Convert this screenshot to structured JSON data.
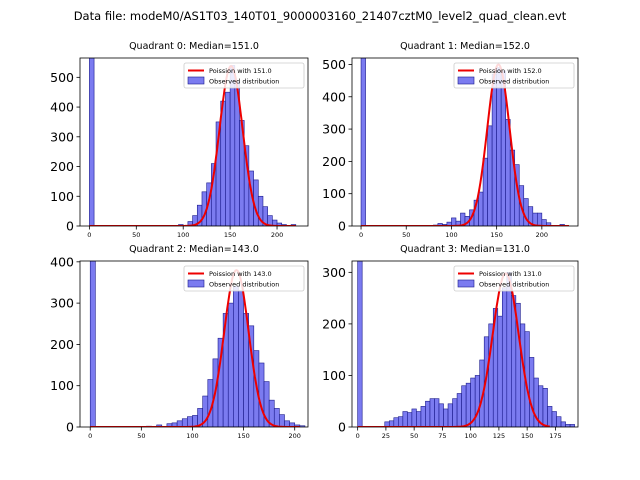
{
  "figure_title": "Data file: modeM0/AS1T03_140T01_9000003160_21407cztM0_level2_quad_clean.evt",
  "colors": {
    "bar_fill": "#7b7bf0",
    "bar_edge": "#1a1a8c",
    "curve": "#ee0000"
  },
  "chart_data": [
    {
      "type": "bar",
      "title": "Quadrant 0: Median=151.0",
      "xlim": [
        -10,
        233
      ],
      "ylim": [
        0,
        565
      ],
      "xticks": [
        0,
        50,
        100,
        150,
        200
      ],
      "yticks": [
        0,
        100,
        200,
        300,
        400,
        500
      ],
      "legend": {
        "placement": "top-right",
        "curve_label": "Poission with 151.0",
        "bar_label": "Observed distribution"
      },
      "bin_width": 5,
      "bins": [
        [
          0,
          565
        ],
        [
          5,
          0
        ],
        [
          10,
          0
        ],
        [
          15,
          0
        ],
        [
          20,
          0
        ],
        [
          25,
          0
        ],
        [
          30,
          0
        ],
        [
          35,
          0
        ],
        [
          40,
          0
        ],
        [
          45,
          0
        ],
        [
          50,
          0
        ],
        [
          55,
          0
        ],
        [
          60,
          0
        ],
        [
          65,
          0
        ],
        [
          70,
          0
        ],
        [
          75,
          0
        ],
        [
          80,
          0
        ],
        [
          85,
          0
        ],
        [
          90,
          0
        ],
        [
          95,
          5
        ],
        [
          100,
          0
        ],
        [
          105,
          15
        ],
        [
          110,
          35
        ],
        [
          115,
          70
        ],
        [
          120,
          115
        ],
        [
          125,
          145
        ],
        [
          130,
          210
        ],
        [
          135,
          350
        ],
        [
          140,
          420
        ],
        [
          145,
          450
        ],
        [
          150,
          540
        ],
        [
          155,
          485
        ],
        [
          160,
          355
        ],
        [
          165,
          270
        ],
        [
          170,
          185
        ],
        [
          175,
          155
        ],
        [
          180,
          100
        ],
        [
          185,
          65
        ],
        [
          190,
          35
        ],
        [
          195,
          20
        ],
        [
          200,
          10
        ],
        [
          205,
          5
        ],
        [
          210,
          0
        ],
        [
          215,
          5
        ]
      ],
      "curve": {
        "type": "poisson",
        "mean": 151,
        "peak": 538,
        "x_range": [
          0,
          220
        ]
      }
    },
    {
      "type": "bar",
      "title": "Quadrant 1: Median=152.0",
      "xlim": [
        -10,
        240
      ],
      "ylim": [
        0,
        520
      ],
      "xticks": [
        0,
        50,
        100,
        150,
        200
      ],
      "yticks": [
        0,
        100,
        200,
        300,
        400,
        500
      ],
      "legend": {
        "placement": "top-right",
        "curve_label": "Poission with 152.0",
        "bar_label": "Observed distribution"
      },
      "bin_width": 5,
      "bins": [
        [
          0,
          520
        ],
        [
          5,
          0
        ],
        [
          10,
          0
        ],
        [
          15,
          0
        ],
        [
          20,
          0
        ],
        [
          25,
          0
        ],
        [
          30,
          0
        ],
        [
          35,
          0
        ],
        [
          40,
          0
        ],
        [
          45,
          0
        ],
        [
          50,
          0
        ],
        [
          55,
          0
        ],
        [
          60,
          0
        ],
        [
          65,
          0
        ],
        [
          70,
          0
        ],
        [
          75,
          0
        ],
        [
          80,
          3
        ],
        [
          85,
          8
        ],
        [
          90,
          5
        ],
        [
          95,
          12
        ],
        [
          100,
          25
        ],
        [
          105,
          15
        ],
        [
          110,
          40
        ],
        [
          115,
          30
        ],
        [
          120,
          50
        ],
        [
          125,
          80
        ],
        [
          130,
          105
        ],
        [
          135,
          210
        ],
        [
          140,
          310
        ],
        [
          145,
          470
        ],
        [
          150,
          490
        ],
        [
          155,
          480
        ],
        [
          160,
          330
        ],
        [
          165,
          235
        ],
        [
          170,
          190
        ],
        [
          175,
          125
        ],
        [
          180,
          85
        ],
        [
          185,
          60
        ],
        [
          190,
          40
        ],
        [
          195,
          40
        ],
        [
          200,
          20
        ],
        [
          205,
          10
        ],
        [
          210,
          0
        ],
        [
          215,
          0
        ],
        [
          220,
          5
        ]
      ],
      "curve": {
        "type": "poisson",
        "mean": 152,
        "peak": 500,
        "x_range": [
          0,
          230
        ]
      }
    },
    {
      "type": "bar",
      "title": "Quadrant 2: Median=143.0",
      "xlim": [
        -10,
        213
      ],
      "ylim": [
        0,
        402
      ],
      "xticks": [
        0,
        50,
        100,
        150,
        200
      ],
      "yticks": [
        0,
        100,
        200,
        300,
        400
      ],
      "legend": {
        "placement": "top-right",
        "curve_label": "Poission with 143.0",
        "bar_label": "Observed distribution"
      },
      "bin_width": 5,
      "bins": [
        [
          0,
          402
        ],
        [
          5,
          0
        ],
        [
          10,
          0
        ],
        [
          15,
          0
        ],
        [
          20,
          0
        ],
        [
          25,
          0
        ],
        [
          30,
          0
        ],
        [
          35,
          0
        ],
        [
          40,
          0
        ],
        [
          45,
          0
        ],
        [
          50,
          0
        ],
        [
          55,
          2
        ],
        [
          60,
          0
        ],
        [
          65,
          5
        ],
        [
          70,
          0
        ],
        [
          75,
          8
        ],
        [
          80,
          10
        ],
        [
          85,
          15
        ],
        [
          90,
          20
        ],
        [
          95,
          25
        ],
        [
          100,
          28
        ],
        [
          105,
          45
        ],
        [
          110,
          75
        ],
        [
          115,
          115
        ],
        [
          120,
          165
        ],
        [
          125,
          215
        ],
        [
          130,
          275
        ],
        [
          135,
          300
        ],
        [
          140,
          340
        ],
        [
          145,
          330
        ],
        [
          150,
          275
        ],
        [
          155,
          245
        ],
        [
          160,
          185
        ],
        [
          165,
          155
        ],
        [
          170,
          110
        ],
        [
          175,
          65
        ],
        [
          180,
          45
        ],
        [
          185,
          30
        ],
        [
          190,
          15
        ],
        [
          195,
          10
        ],
        [
          200,
          5
        ],
        [
          205,
          3
        ]
      ],
      "curve": {
        "type": "poisson",
        "mean": 143,
        "peak": 380,
        "x_range": [
          0,
          205
        ]
      }
    },
    {
      "type": "bar",
      "title": "Quadrant 3: Median=131.0",
      "xlim": [
        -5,
        195
      ],
      "ylim": [
        0,
        322
      ],
      "xticks": [
        0,
        25,
        50,
        75,
        100,
        125,
        150,
        175
      ],
      "yticks": [
        0,
        100,
        200,
        300
      ],
      "legend": {
        "placement": "top-right",
        "curve_label": "Poission with 131.0",
        "bar_label": "Observed distribution"
      },
      "bin_width": 4,
      "bins": [
        [
          0,
          322
        ],
        [
          4,
          0
        ],
        [
          8,
          0
        ],
        [
          12,
          0
        ],
        [
          16,
          0
        ],
        [
          20,
          0
        ],
        [
          24,
          10
        ],
        [
          28,
          12
        ],
        [
          32,
          18
        ],
        [
          36,
          20
        ],
        [
          40,
          30
        ],
        [
          44,
          28
        ],
        [
          48,
          35
        ],
        [
          52,
          30
        ],
        [
          56,
          40
        ],
        [
          60,
          50
        ],
        [
          64,
          55
        ],
        [
          68,
          55
        ],
        [
          72,
          45
        ],
        [
          76,
          35
        ],
        [
          80,
          45
        ],
        [
          84,
          55
        ],
        [
          88,
          65
        ],
        [
          92,
          80
        ],
        [
          96,
          85
        ],
        [
          100,
          95
        ],
        [
          104,
          100
        ],
        [
          108,
          130
        ],
        [
          112,
          175
        ],
        [
          116,
          200
        ],
        [
          120,
          230
        ],
        [
          124,
          215
        ],
        [
          128,
          270
        ],
        [
          132,
          300
        ],
        [
          136,
          255
        ],
        [
          140,
          240
        ],
        [
          144,
          200
        ],
        [
          148,
          185
        ],
        [
          152,
          135
        ],
        [
          156,
          95
        ],
        [
          160,
          80
        ],
        [
          164,
          75
        ],
        [
          168,
          40
        ],
        [
          172,
          30
        ],
        [
          176,
          20
        ],
        [
          180,
          10
        ],
        [
          184,
          5
        ],
        [
          188,
          5
        ]
      ],
      "curve": {
        "type": "poisson",
        "mean": 131,
        "peak": 298,
        "x_range": [
          0,
          170
        ]
      }
    }
  ]
}
